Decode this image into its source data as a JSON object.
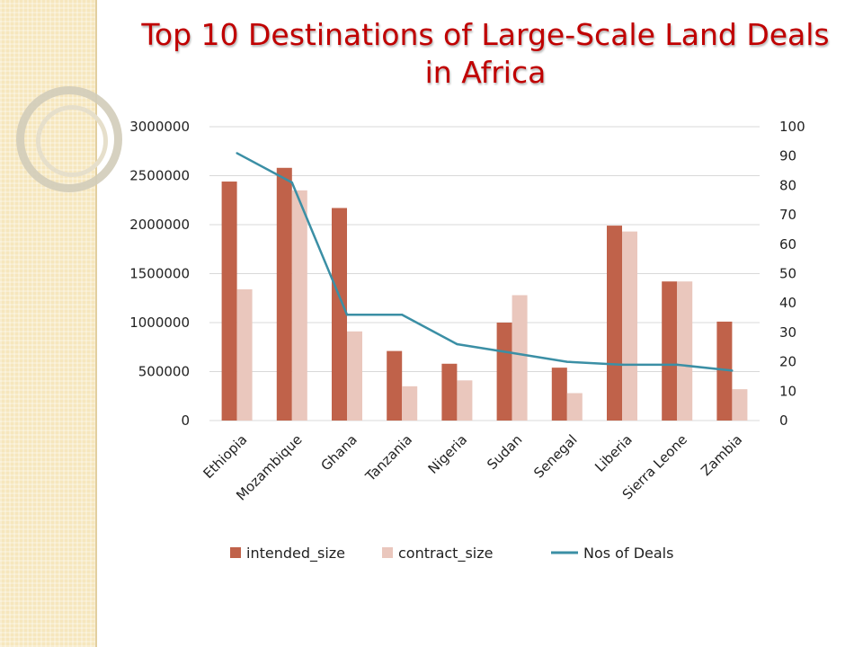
{
  "slide": {
    "title_line1": "Top 10 Destinations of Large-Scale Land Deals",
    "title_line2": "in Africa"
  },
  "colors": {
    "intended_size": "#c0624a",
    "contract_size": "#eac7bd",
    "deals_line": "#3b8fa5",
    "title": "#c00000"
  },
  "chart_data": {
    "type": "bar",
    "categories": [
      "Ethiopia",
      "Mozambique",
      "Ghana",
      "Tanzania",
      "Nigeria",
      "Sudan",
      "Senegal",
      "Liberia",
      "Sierra Leone",
      "Zambia"
    ],
    "series": [
      {
        "name": "intended_size",
        "type": "bar",
        "axis": "left",
        "values": [
          2440000,
          2580000,
          2170000,
          710000,
          580000,
          1000000,
          540000,
          1990000,
          1420000,
          1010000
        ]
      },
      {
        "name": "contract_size",
        "type": "bar",
        "axis": "left",
        "values": [
          1340000,
          2350000,
          910000,
          350000,
          410000,
          1280000,
          280000,
          1930000,
          1420000,
          320000
        ]
      },
      {
        "name": "Nos of Deals",
        "type": "line",
        "axis": "right",
        "values": [
          91,
          81,
          36,
          36,
          26,
          23,
          20,
          19,
          19,
          17
        ]
      }
    ],
    "ylim_left": [
      0,
      3000000
    ],
    "ylim_right": [
      0,
      100
    ],
    "yticks_left": [
      "0",
      "500000",
      "1000000",
      "1500000",
      "2000000",
      "2500000",
      "3000000"
    ],
    "yticks_right": [
      "0",
      "10",
      "20",
      "30",
      "40",
      "50",
      "60",
      "70",
      "80",
      "90",
      "100"
    ],
    "grid": true,
    "legend_position": "bottom"
  }
}
